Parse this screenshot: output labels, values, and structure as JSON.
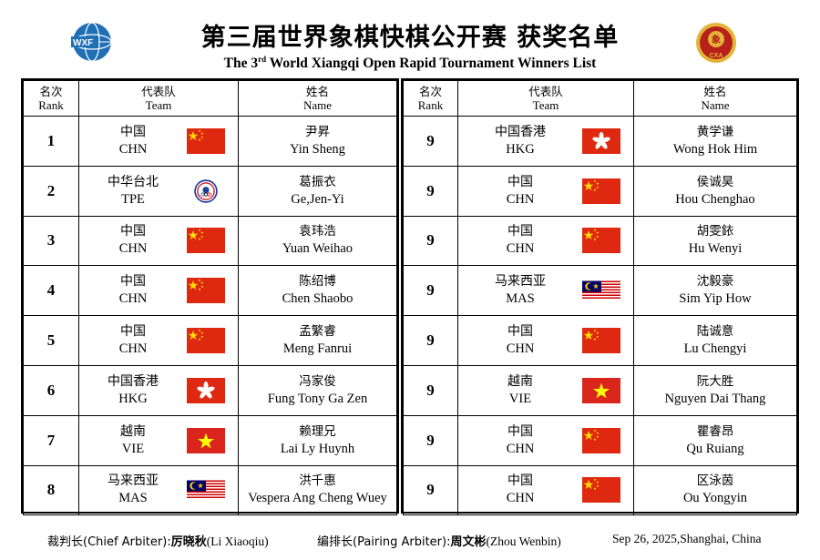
{
  "header": {
    "title_cn": "第三届世界象棋快棋公开赛 获奖名单",
    "title_en_pre": "The 3",
    "title_en_sup": "rd",
    "title_en_post": " World Xiangqi Open Rapid Tournament Winners  List",
    "logo_left_text": "WXF",
    "logo_right_text": "CXA"
  },
  "columns": {
    "rank_cn": "名次",
    "rank_en": "Rank",
    "team_cn": "代表队",
    "team_en": "Team",
    "name_cn": "姓名",
    "name_en": "Name"
  },
  "left_rows": [
    {
      "rank": "1",
      "team_cn": "中国",
      "team_en": "CHN",
      "flag": "CHN",
      "name_cn": "尹昇",
      "name_en": "Yin Sheng"
    },
    {
      "rank": "2",
      "team_cn": "中华台北",
      "team_en": "TPE",
      "flag": "TPE",
      "name_cn": "葛振衣",
      "name_en": "Ge,Jen-Yi"
    },
    {
      "rank": "3",
      "team_cn": "中国",
      "team_en": "CHN",
      "flag": "CHN",
      "name_cn": "袁玮浩",
      "name_en": "Yuan Weihao"
    },
    {
      "rank": "4",
      "team_cn": "中国",
      "team_en": "CHN",
      "flag": "CHN",
      "name_cn": "陈绍博",
      "name_en": "Chen Shaobo"
    },
    {
      "rank": "5",
      "team_cn": "中国",
      "team_en": "CHN",
      "flag": "CHN",
      "name_cn": "孟繁睿",
      "name_en": "Meng Fanrui"
    },
    {
      "rank": "6",
      "team_cn": "中国香港",
      "team_en": "HKG",
      "flag": "HKG",
      "name_cn": "冯家俊",
      "name_en": "Fung Tony Ga Zen"
    },
    {
      "rank": "7",
      "team_cn": "越南",
      "team_en": "VIE",
      "flag": "VIE",
      "name_cn": "赖理兄",
      "name_en": "Lai Ly Huynh"
    },
    {
      "rank": "8",
      "team_cn": "马来西亚",
      "team_en": "MAS",
      "flag": "MAS",
      "name_cn": "洪千惠",
      "name_en": "Vespera Ang Cheng Wuey"
    }
  ],
  "right_rows": [
    {
      "rank": "9",
      "team_cn": "中国香港",
      "team_en": "HKG",
      "flag": "HKG",
      "name_cn": "黄学谦",
      "name_en": "Wong Hok Him"
    },
    {
      "rank": "9",
      "team_cn": "中国",
      "team_en": "CHN",
      "flag": "CHN",
      "name_cn": "侯诚昊",
      "name_en": "Hou Chenghao"
    },
    {
      "rank": "9",
      "team_cn": "中国",
      "team_en": "CHN",
      "flag": "CHN",
      "name_cn": "胡雯銥",
      "name_en": "Hu Wenyi"
    },
    {
      "rank": "9",
      "team_cn": "马来西亚",
      "team_en": "MAS",
      "flag": "MAS",
      "name_cn": "沈毅豪",
      "name_en": "Sim Yip How"
    },
    {
      "rank": "9",
      "team_cn": "中国",
      "team_en": "CHN",
      "flag": "CHN",
      "name_cn": "陆诚意",
      "name_en": "Lu Chengyi"
    },
    {
      "rank": "9",
      "team_cn": "越南",
      "team_en": "VIE",
      "flag": "VIE",
      "name_cn": "阮大胜",
      "name_en": "Nguyen Dai Thang"
    },
    {
      "rank": "9",
      "team_cn": "中国",
      "team_en": "CHN",
      "flag": "CHN",
      "name_cn": "瞿睿昂",
      "name_en": "Qu Ruiang"
    },
    {
      "rank": "9",
      "team_cn": "中国",
      "team_en": "CHN",
      "flag": "CHN",
      "name_cn": "区泳茵",
      "name_en": "Ou Yongyin"
    }
  ],
  "footer": {
    "chief_label": "裁判长(Chief Arbiter):",
    "chief_name_cn": "厉晓秋",
    "chief_name_en": "(Li Xiaoqiu)",
    "pairing_label": "编排长(Pairing Arbiter):",
    "pairing_name_cn": "周文彬",
    "pairing_name_en": "(Zhou Wenbin)",
    "date_place": "Sep 26, 2025,Shanghai, China"
  },
  "colors": {
    "china_red": "#de2910",
    "china_star": "#ffde00",
    "hk_red": "#de2910",
    "vn_red": "#da251d",
    "vn_star": "#ffff00",
    "my_red": "#cc0001",
    "my_blue": "#010066",
    "my_yellow": "#ffcc00",
    "wxf_blue": "#1f6fb5",
    "cxa_red": "#b8201a",
    "cxa_gold": "#e3b33a"
  }
}
